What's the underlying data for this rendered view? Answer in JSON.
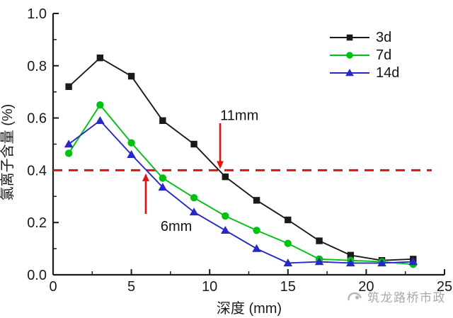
{
  "figure": {
    "background": "#ffffff",
    "watermark": {
      "text": "筑龙路桥市政",
      "color": "#a9a9a9",
      "logo": "zhulong-logo"
    }
  },
  "chart_data": {
    "type": "line",
    "title": "",
    "xlabel": "深度 (mm)",
    "ylabel": "氯离子含量 (%)",
    "xlim": [
      0,
      25
    ],
    "ylim": [
      0.0,
      1.0
    ],
    "grid": false,
    "legend_position": "upper right",
    "x_major_ticks": [
      0,
      5,
      10,
      15,
      20,
      25
    ],
    "x_tick_labels": [
      "0",
      "5",
      "10",
      "15",
      "20",
      "25"
    ],
    "x_minor_ticks": [
      2.5,
      7.5,
      12.5,
      17.5,
      22.5
    ],
    "y_major_ticks": [
      0.0,
      0.2,
      0.4,
      0.6,
      0.8,
      1.0
    ],
    "y_tick_labels": [
      "0.0",
      "0.2",
      "0.4",
      "0.6",
      "0.8",
      "1.0"
    ],
    "y_minor_ticks": [
      0.1,
      0.3,
      0.5,
      0.7,
      0.9
    ],
    "x": [
      1,
      3,
      5,
      7,
      9,
      11,
      13,
      15,
      17,
      19,
      21,
      23
    ],
    "series": [
      {
        "name": "3d",
        "color": "#1a1a1a",
        "marker": "square",
        "values": [
          0.72,
          0.83,
          0.76,
          0.59,
          0.5,
          0.375,
          0.285,
          0.21,
          0.13,
          0.075,
          0.055,
          0.06
        ]
      },
      {
        "name": "7d",
        "color": "#00c213",
        "marker": "circle",
        "values": [
          0.465,
          0.65,
          0.505,
          0.37,
          0.295,
          0.225,
          0.17,
          0.12,
          0.06,
          0.055,
          0.05,
          0.04
        ]
      },
      {
        "name": "14d",
        "color": "#2629c5",
        "marker": "triangle",
        "values": [
          0.5,
          0.59,
          0.46,
          0.335,
          0.24,
          0.17,
          0.1,
          0.045,
          0.05,
          0.045,
          0.045,
          0.05
        ]
      }
    ],
    "reference_line": {
      "y": 0.4,
      "color": "#e21212",
      "style": "dashed"
    },
    "annotations": [
      {
        "text": "11mm",
        "arrow": "down",
        "x": 10.67,
        "arrow_from_y": 0.58,
        "arrow_to_y": 0.405,
        "text_x": 11.9,
        "text_y": 0.592,
        "color": "#e21212"
      },
      {
        "text": "6mm",
        "arrow": "up",
        "x": 5.92,
        "arrow_from_y": 0.233,
        "arrow_to_y": 0.388,
        "text_x": 7.87,
        "text_y": 0.168,
        "color": "#e21212"
      }
    ]
  }
}
